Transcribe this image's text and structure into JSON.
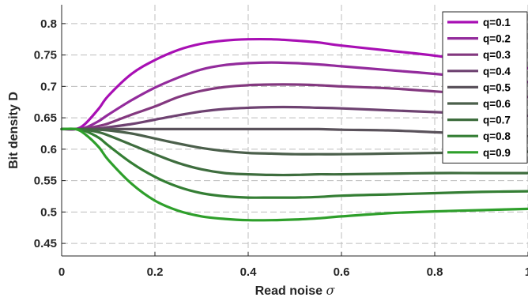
{
  "chart_data": {
    "type": "line",
    "title": "",
    "xlabel": "Read noise",
    "xlabel_symbol": "σ",
    "ylabel": "Bit density D",
    "xlim": [
      0,
      1
    ],
    "ylim": [
      0.43,
      0.83
    ],
    "grid": true,
    "grid_style": "dashed",
    "legend_position": "top-right",
    "x_ticks": [
      0,
      0.2,
      0.4,
      0.6,
      0.8,
      1
    ],
    "x_tick_labels": [
      "0",
      "0.2",
      "0.4",
      "0.6",
      "0.8",
      "1"
    ],
    "y_ticks": [
      0.45,
      0.5,
      0.55,
      0.6,
      0.65,
      0.7,
      0.75,
      0.8
    ],
    "y_tick_labels": [
      "0.45",
      "0.5",
      "0.55",
      "0.6",
      "0.65",
      "0.7",
      "0.75",
      "0.8"
    ],
    "x": [
      0,
      0.03,
      0.05,
      0.08,
      0.1,
      0.15,
      0.2,
      0.25,
      0.3,
      0.35,
      0.4,
      0.45,
      0.5,
      0.55,
      0.6,
      0.7,
      0.8,
      0.9,
      1.0
    ],
    "series": [
      {
        "name": "q=0.1",
        "color": "#a80fb4",
        "values": [
          0.632,
          0.632,
          0.64,
          0.665,
          0.685,
          0.72,
          0.742,
          0.758,
          0.768,
          0.773,
          0.775,
          0.775,
          0.773,
          0.77,
          0.765,
          0.757,
          0.749,
          0.738,
          0.729
        ]
      },
      {
        "name": "q=0.2",
        "color": "#932b9c",
        "values": [
          0.632,
          0.632,
          0.634,
          0.645,
          0.655,
          0.678,
          0.698,
          0.714,
          0.727,
          0.734,
          0.737,
          0.738,
          0.737,
          0.735,
          0.732,
          0.726,
          0.72,
          0.713,
          0.707
        ]
      },
      {
        "name": "q=0.3",
        "color": "#83387f",
        "values": [
          0.632,
          0.632,
          0.633,
          0.637,
          0.641,
          0.655,
          0.668,
          0.683,
          0.693,
          0.699,
          0.702,
          0.703,
          0.703,
          0.702,
          0.7,
          0.697,
          0.692,
          0.687,
          0.683
        ]
      },
      {
        "name": "q=0.4",
        "color": "#6e4271",
        "values": [
          0.632,
          0.632,
          0.632,
          0.633,
          0.635,
          0.64,
          0.647,
          0.654,
          0.66,
          0.664,
          0.666,
          0.667,
          0.667,
          0.666,
          0.665,
          0.662,
          0.659,
          0.656,
          0.653
        ]
      },
      {
        "name": "q=0.5",
        "color": "#5a525b",
        "values": [
          0.632,
          0.632,
          0.632,
          0.632,
          0.632,
          0.632,
          0.632,
          0.632,
          0.632,
          0.632,
          0.632,
          0.632,
          0.632,
          0.632,
          0.631,
          0.63,
          0.627,
          0.624,
          0.621
        ]
      },
      {
        "name": "q=0.6",
        "color": "#4b5f4b",
        "values": [
          0.632,
          0.632,
          0.632,
          0.631,
          0.63,
          0.625,
          0.617,
          0.609,
          0.602,
          0.597,
          0.594,
          0.593,
          0.592,
          0.592,
          0.592,
          0.593,
          0.594,
          0.595,
          0.596
        ]
      },
      {
        "name": "q=0.7",
        "color": "#3e6d3e",
        "values": [
          0.632,
          0.632,
          0.631,
          0.627,
          0.622,
          0.607,
          0.592,
          0.578,
          0.568,
          0.562,
          0.56,
          0.559,
          0.559,
          0.56,
          0.56,
          0.561,
          0.562,
          0.562,
          0.562
        ]
      },
      {
        "name": "q=0.8",
        "color": "#347e34",
        "values": [
          0.632,
          0.632,
          0.629,
          0.618,
          0.606,
          0.578,
          0.556,
          0.54,
          0.53,
          0.525,
          0.523,
          0.523,
          0.523,
          0.524,
          0.526,
          0.528,
          0.53,
          0.532,
          0.533
        ]
      },
      {
        "name": "q=0.9",
        "color": "#2e9f2b",
        "values": [
          0.632,
          0.632,
          0.624,
          0.603,
          0.583,
          0.545,
          0.518,
          0.502,
          0.493,
          0.489,
          0.487,
          0.487,
          0.488,
          0.49,
          0.493,
          0.498,
          0.501,
          0.503,
          0.505
        ]
      }
    ]
  }
}
